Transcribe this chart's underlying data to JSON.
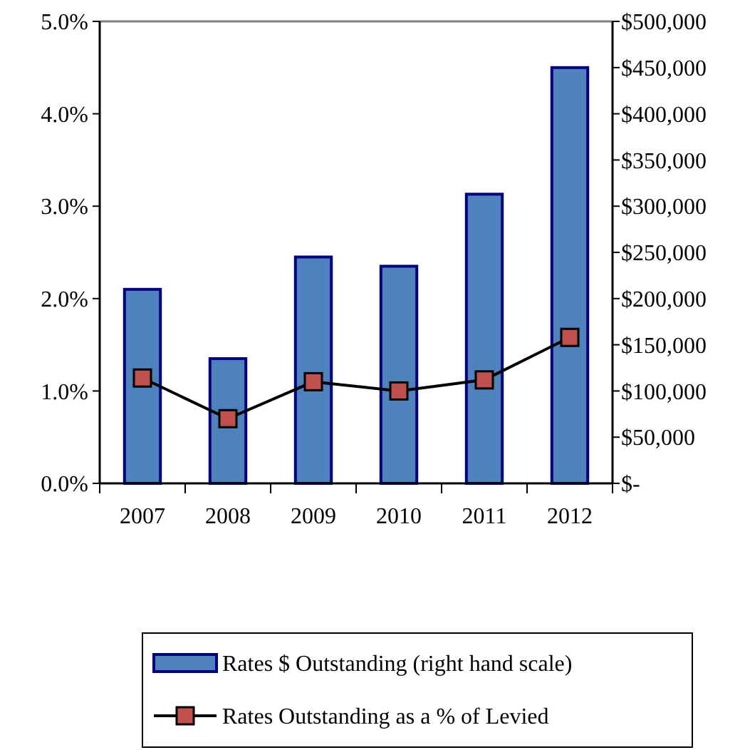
{
  "chart_data": {
    "type": "bar",
    "categories": [
      "2007",
      "2008",
      "2009",
      "2010",
      "2011",
      "2012"
    ],
    "series": [
      {
        "name": "Rates $ Outstanding (right hand scale)",
        "axis": "y2",
        "color": "#4f81bd",
        "values": [
          210000,
          135000,
          245000,
          235000,
          313000,
          450000
        ]
      },
      {
        "name": "Rates Outstanding as a % of Levied",
        "type": "line",
        "axis": "y",
        "color": "#000000",
        "marker": "square",
        "values": [
          1.14,
          0.7,
          1.1,
          1.0,
          1.12,
          1.58
        ]
      }
    ],
    "ylim": [
      0,
      5
    ],
    "yticks": [
      {
        "value": 0,
        "label": "0.0%"
      },
      {
        "value": 1,
        "label": "1.0%"
      },
      {
        "value": 2,
        "label": "2.0%"
      },
      {
        "value": 3,
        "label": "3.0%"
      },
      {
        "value": 4,
        "label": "4.0%"
      },
      {
        "value": 5,
        "label": "5.0%"
      }
    ],
    "y2lim": [
      0,
      500000
    ],
    "y2ticks": [
      {
        "value": 0,
        "label": "$-"
      },
      {
        "value": 50000,
        "label": "$50,000"
      },
      {
        "value": 100000,
        "label": "$100,000"
      },
      {
        "value": 150000,
        "label": "$150,000"
      },
      {
        "value": 200000,
        "label": "$200,000"
      },
      {
        "value": 250000,
        "label": "$250,000"
      },
      {
        "value": 300000,
        "label": "$300,000"
      },
      {
        "value": 350000,
        "label": "$350,000"
      },
      {
        "value": 400000,
        "label": "$400,000"
      },
      {
        "value": 450000,
        "label": "$450,000"
      },
      {
        "value": 500000,
        "label": "$500,000"
      }
    ],
    "legend": "bottom",
    "grid": false
  }
}
